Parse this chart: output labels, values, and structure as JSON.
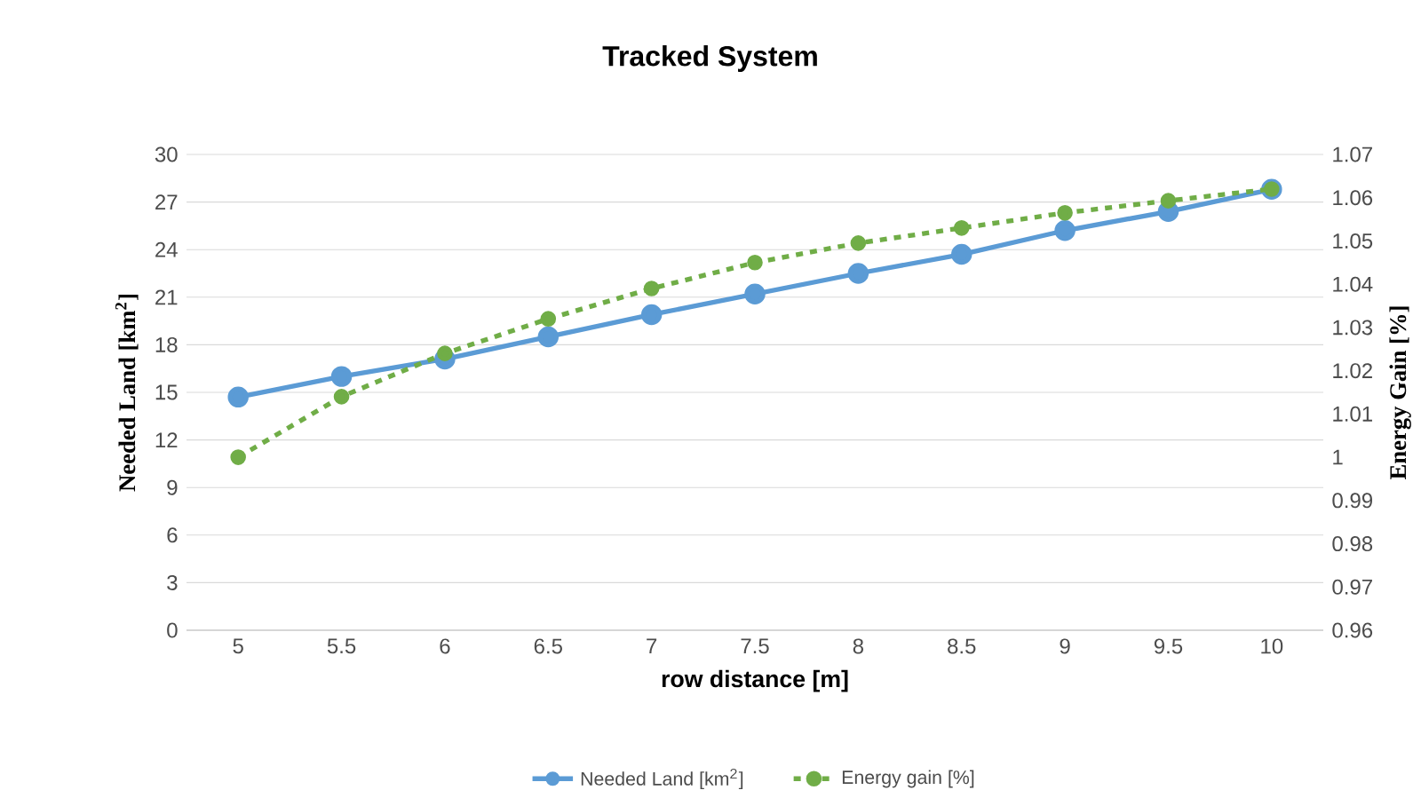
{
  "chart_data": {
    "type": "line",
    "title": "Tracked System",
    "xlabel": "row distance [m]",
    "ylabel": "Needed Land [km$^{2}$]",
    "y2label": "Energy Gain [%]",
    "categories": [
      "5",
      "5.5",
      "6",
      "6.5",
      "7",
      "7.5",
      "8",
      "8.5",
      "9",
      "9.5",
      "10"
    ],
    "series": [
      {
        "name": "Needed Land [km$^{2}$]",
        "color": "#5b9bd5",
        "line_style": "solid",
        "values": [
          14.7,
          16.0,
          17.1,
          18.5,
          19.9,
          21.2,
          22.5,
          23.7,
          25.2,
          26.4,
          27.8
        ]
      },
      {
        "name": "Energy gain [%]",
        "color": "#70ad47",
        "line_style": "dashed",
        "axis": "y2",
        "values": [
          1.0,
          1.014,
          1.024,
          1.032,
          1.039,
          1.045,
          1.0495,
          1.053,
          1.0565,
          1.0593,
          1.062
        ]
      }
    ],
    "ylim": [
      0,
      30
    ],
    "yticks": [
      0,
      3,
      6,
      9,
      12,
      15,
      18,
      21,
      24,
      27,
      30
    ],
    "y2lim": [
      0.96,
      1.07
    ],
    "y2ticks": [
      0.96,
      0.97,
      0.98,
      0.99,
      1,
      1.01,
      1.02,
      1.03,
      1.04,
      1.05,
      1.06,
      1.07
    ],
    "grid": "y",
    "legend": "bottom",
    "marker": "circle"
  }
}
